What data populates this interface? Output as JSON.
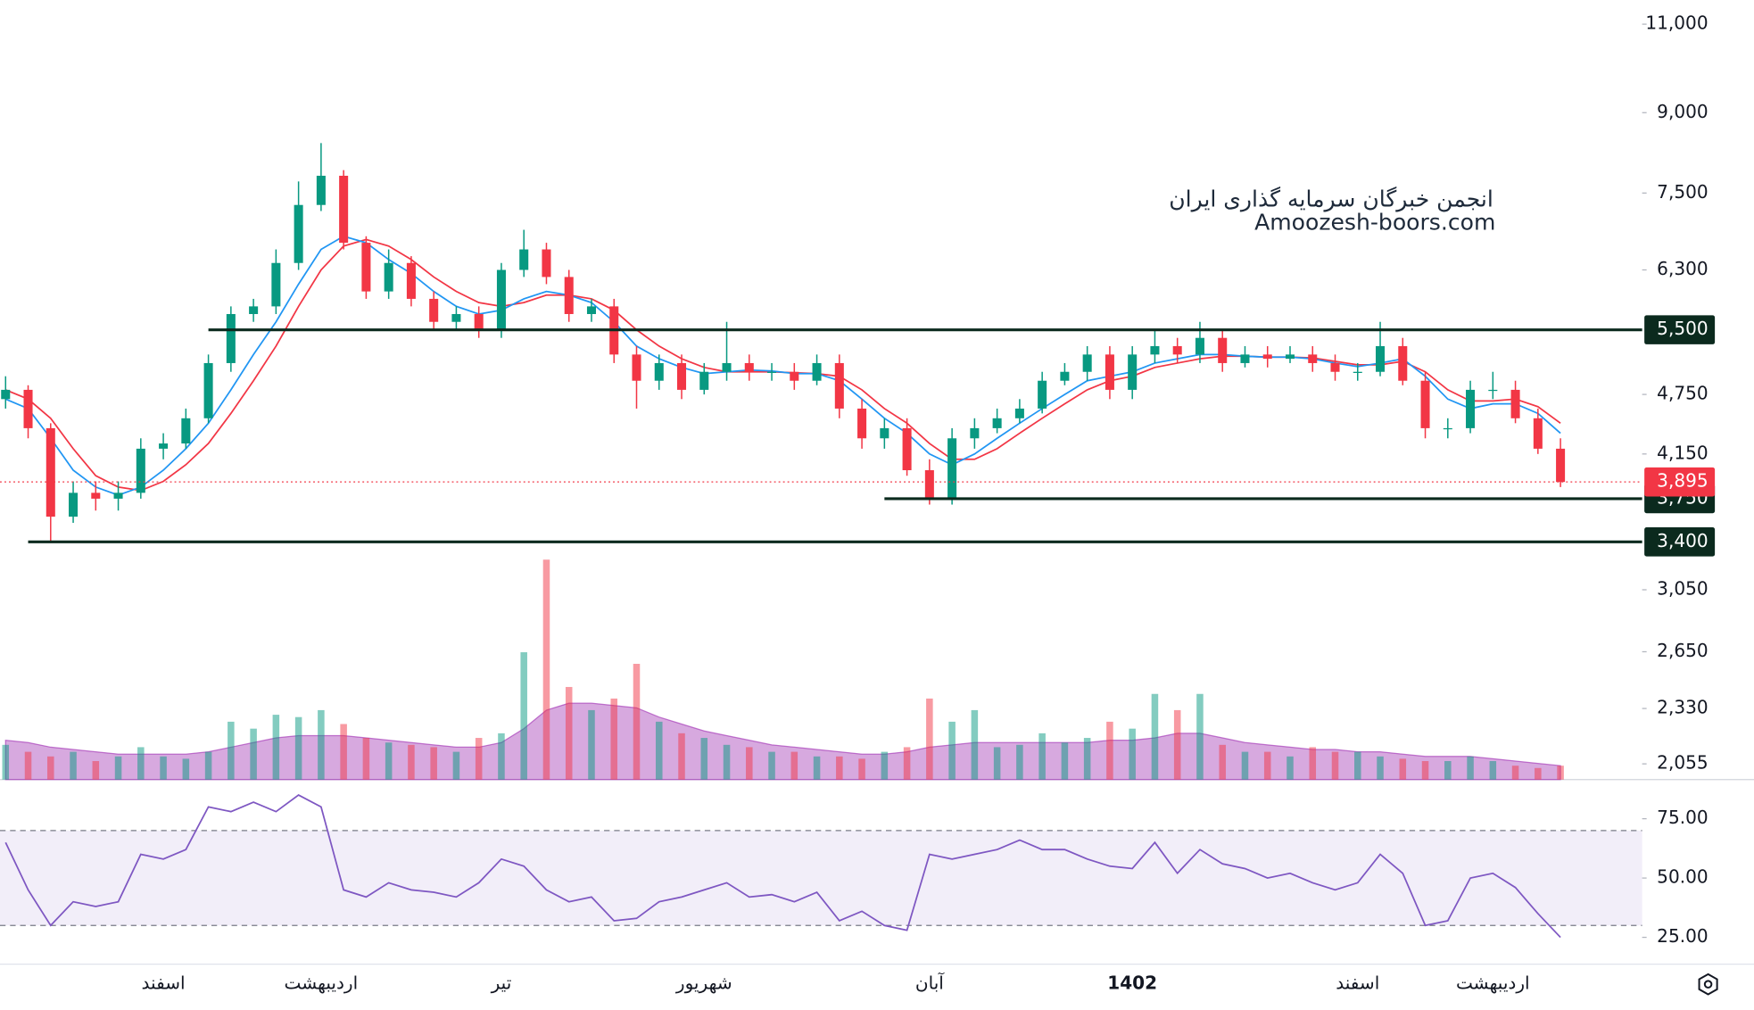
{
  "chart_data": {
    "type": "candlestick",
    "watermark": [
      "انجمن خبرگان سرمایه گذاری ایران",
      "Amoozesh-boors.com"
    ],
    "categories": [
      null,
      null,
      null,
      null,
      null,
      null,
      null,
      "اسفند",
      null,
      null,
      null,
      null,
      null,
      null,
      "اردیبهشت",
      null,
      null,
      null,
      null,
      null,
      null,
      null,
      "تیر",
      null,
      null,
      null,
      null,
      null,
      null,
      null,
      null,
      "شهریور",
      null,
      null,
      null,
      null,
      null,
      null,
      null,
      null,
      null,
      "آبان",
      null,
      null,
      null,
      null,
      null,
      null,
      null,
      null,
      "1402",
      null,
      null,
      null,
      null,
      null,
      null,
      null,
      null,
      null,
      "اسفند",
      null,
      null,
      null,
      null,
      null,
      "اردیبهشت",
      null,
      null,
      null
    ],
    "open": [
      4700,
      4800,
      4400,
      3600,
      3800,
      3750,
      3800,
      4200,
      4250,
      4500,
      5100,
      5700,
      5800,
      6400,
      7300,
      7800,
      6700,
      6000,
      6400,
      5900,
      5600,
      5700,
      5500,
      6300,
      6600,
      6200,
      5700,
      5800,
      5200,
      4900,
      5100,
      4800,
      5000,
      5100,
      5000,
      5000,
      4900,
      5100,
      4600,
      4300,
      4400,
      4000,
      3750,
      4300,
      4400,
      4500,
      4600,
      4900,
      5000,
      5200,
      4800,
      5200,
      5300,
      5200,
      5400,
      5100,
      5200,
      5150,
      5200,
      5100,
      5000,
      5000,
      5300,
      4900,
      4400,
      4400,
      4800,
      4800,
      4500,
      4200
    ],
    "high": [
      4950,
      4850,
      4450,
      3900,
      3900,
      3900,
      4300,
      4350,
      4600,
      5200,
      5800,
      5900,
      6600,
      7700,
      8400,
      7900,
      6800,
      6600,
      6500,
      6000,
      5800,
      5800,
      6400,
      6900,
      6700,
      6300,
      5900,
      5900,
      5300,
      5200,
      5200,
      5100,
      5600,
      5200,
      5100,
      5100,
      5200,
      5200,
      4700,
      4500,
      4500,
      4100,
      4400,
      4500,
      4600,
      4700,
      5000,
      5100,
      5300,
      5300,
      5300,
      5500,
      5400,
      5600,
      5500,
      5300,
      5300,
      5300,
      5300,
      5200,
      5100,
      5600,
      5400,
      5000,
      4500,
      4900,
      5000,
      4900,
      4600,
      4300
    ],
    "low": [
      4600,
      4300,
      3400,
      3550,
      3650,
      3650,
      3750,
      4100,
      4200,
      4450,
      5000,
      5600,
      5700,
      6300,
      7200,
      6600,
      5900,
      5900,
      5800,
      5500,
      5500,
      5400,
      5400,
      6200,
      6100,
      5600,
      5600,
      5100,
      4600,
      4800,
      4700,
      4750,
      4900,
      4900,
      4900,
      4800,
      4850,
      4500,
      4200,
      4200,
      3950,
      3700,
      3700,
      4200,
      4350,
      4450,
      4550,
      4850,
      4900,
      4700,
      4700,
      5100,
      5100,
      5100,
      5000,
      5050,
      5050,
      5100,
      5000,
      4900,
      4900,
      4950,
      4850,
      4300,
      4300,
      4350,
      4700,
      4450,
      4150,
      3850
    ],
    "close": [
      4800,
      4400,
      3600,
      3800,
      3750,
      3800,
      4200,
      4250,
      4500,
      5100,
      5700,
      5800,
      6400,
      7300,
      7800,
      6700,
      6000,
      6400,
      5900,
      5600,
      5700,
      5500,
      6300,
      6600,
      6200,
      5700,
      5800,
      5200,
      4900,
      5100,
      4800,
      5000,
      5100,
      5000,
      5000,
      4900,
      5100,
      4600,
      4300,
      4400,
      4000,
      3750,
      4300,
      4400,
      4500,
      4600,
      4900,
      5000,
      5200,
      4800,
      5200,
      5300,
      5200,
      5400,
      5100,
      5200,
      5150,
      5200,
      5100,
      5000,
      5000,
      5300,
      4900,
      4400,
      4400,
      4800,
      4800,
      4500,
      4200,
      3895
    ],
    "up_color": "#089981",
    "down_color": "#f23645",
    "ma": [
      {
        "color": "#f23645",
        "values": [
          4800,
          4700,
          4500,
          4200,
          3950,
          3850,
          3820,
          3900,
          4050,
          4250,
          4550,
          4900,
          5300,
          5800,
          6300,
          6650,
          6750,
          6650,
          6450,
          6200,
          6000,
          5850,
          5800,
          5850,
          5950,
          5950,
          5900,
          5750,
          5500,
          5300,
          5150,
          5050,
          5000,
          5000,
          5000,
          4990,
          4980,
          4950,
          4800,
          4600,
          4450,
          4250,
          4100,
          4100,
          4200,
          4350,
          4500,
          4650,
          4800,
          4900,
          4950,
          5050,
          5100,
          5150,
          5180,
          5180,
          5170,
          5170,
          5160,
          5120,
          5080,
          5080,
          5120,
          5000,
          4800,
          4680,
          4680,
          4700,
          4620,
          4450
        ]
      },
      {
        "color": "#2196f3",
        "values": [
          4700,
          4600,
          4300,
          4000,
          3850,
          3780,
          3850,
          4000,
          4200,
          4450,
          4800,
          5200,
          5600,
          6100,
          6600,
          6800,
          6700,
          6450,
          6250,
          6000,
          5800,
          5700,
          5750,
          5900,
          6000,
          5950,
          5850,
          5600,
          5300,
          5150,
          5050,
          4980,
          5000,
          5020,
          5010,
          4980,
          4980,
          4900,
          4700,
          4500,
          4350,
          4150,
          4050,
          4150,
          4300,
          4450,
          4600,
          4750,
          4900,
          4950,
          5000,
          5100,
          5150,
          5200,
          5200,
          5180,
          5170,
          5170,
          5150,
          5100,
          5060,
          5100,
          5150,
          4950,
          4700,
          4600,
          4650,
          4650,
          4550,
          4350
        ]
      }
    ],
    "log": true,
    "ylim": [
      1983,
      11620
    ],
    "yticks": [
      {
        "value": 11000,
        "label": "11,000"
      },
      {
        "value": 9000,
        "label": "9,000"
      },
      {
        "value": 7500,
        "label": "7,500"
      },
      {
        "value": 6300,
        "label": "6,300"
      },
      {
        "value": 4750,
        "label": "4,750"
      },
      {
        "value": 4150,
        "label": "4,150"
      },
      {
        "value": 3050,
        "label": "3,050"
      },
      {
        "value": 2650,
        "label": "2,650"
      },
      {
        "value": 2330,
        "label": "2,330"
      },
      {
        "value": 2055,
        "label": "2,055"
      }
    ],
    "levels": [
      {
        "value": 5500,
        "label": "5,500",
        "from": 9
      },
      {
        "value": 3750,
        "label": "3,750",
        "from": 39
      },
      {
        "value": 3400,
        "label": "3,400",
        "from": 1
      }
    ],
    "level_color": "#0b2a1e",
    "last": {
      "value": 3895,
      "label": "3,895",
      "color": "#f23645"
    },
    "volume": {
      "ylim": [
        0,
        100
      ],
      "values": [
        15,
        12,
        10,
        12,
        8,
        10,
        14,
        10,
        9,
        12,
        25,
        22,
        28,
        27,
        30,
        24,
        18,
        16,
        15,
        14,
        12,
        18,
        20,
        55,
        95,
        40,
        30,
        35,
        50,
        25,
        20,
        18,
        15,
        14,
        12,
        12,
        10,
        10,
        9,
        12,
        14,
        35,
        25,
        30,
        14,
        15,
        20,
        16,
        18,
        25,
        22,
        37,
        30,
        37,
        15,
        12,
        12,
        10,
        14,
        12,
        12,
        10,
        9,
        8,
        8,
        10,
        8,
        6,
        5,
        6
      ],
      "ma": [
        17,
        16,
        14,
        13,
        12,
        11,
        11,
        11,
        11,
        12,
        14,
        16,
        18,
        19,
        19,
        19,
        18,
        17,
        16,
        15,
        14,
        14,
        16,
        22,
        30,
        33,
        33,
        32,
        31,
        27,
        24,
        21,
        19,
        17,
        15,
        14,
        13,
        12,
        11,
        11,
        12,
        14,
        15,
        16,
        16,
        16,
        16,
        16,
        16,
        17,
        17,
        18,
        20,
        20,
        18,
        16,
        15,
        14,
        13,
        13,
        12,
        12,
        11,
        10,
        10,
        10,
        9,
        8,
        7,
        6
      ],
      "ma_color": "#9c27b0"
    },
    "rsi": {
      "ylim": [
        13.7,
        91.5
      ],
      "color": "#7e57c2",
      "bands": [
        30,
        70
      ],
      "yticks": [
        {
          "value": 75,
          "label": "75.00"
        },
        {
          "value": 50,
          "label": "50.00"
        },
        {
          "value": 25,
          "label": "25.00"
        }
      ],
      "values": [
        65,
        45,
        30,
        40,
        38,
        40,
        60,
        58,
        62,
        80,
        78,
        82,
        78,
        85,
        80,
        45,
        42,
        48,
        45,
        44,
        42,
        48,
        58,
        55,
        45,
        40,
        42,
        32,
        33,
        40,
        42,
        45,
        48,
        42,
        43,
        40,
        44,
        32,
        36,
        30,
        28,
        60,
        58,
        60,
        62,
        66,
        62,
        62,
        58,
        55,
        54,
        65,
        52,
        62,
        56,
        54,
        50,
        52,
        48,
        45,
        48,
        60,
        52,
        30,
        32,
        50,
        52,
        46,
        35,
        25
      ]
    }
  }
}
